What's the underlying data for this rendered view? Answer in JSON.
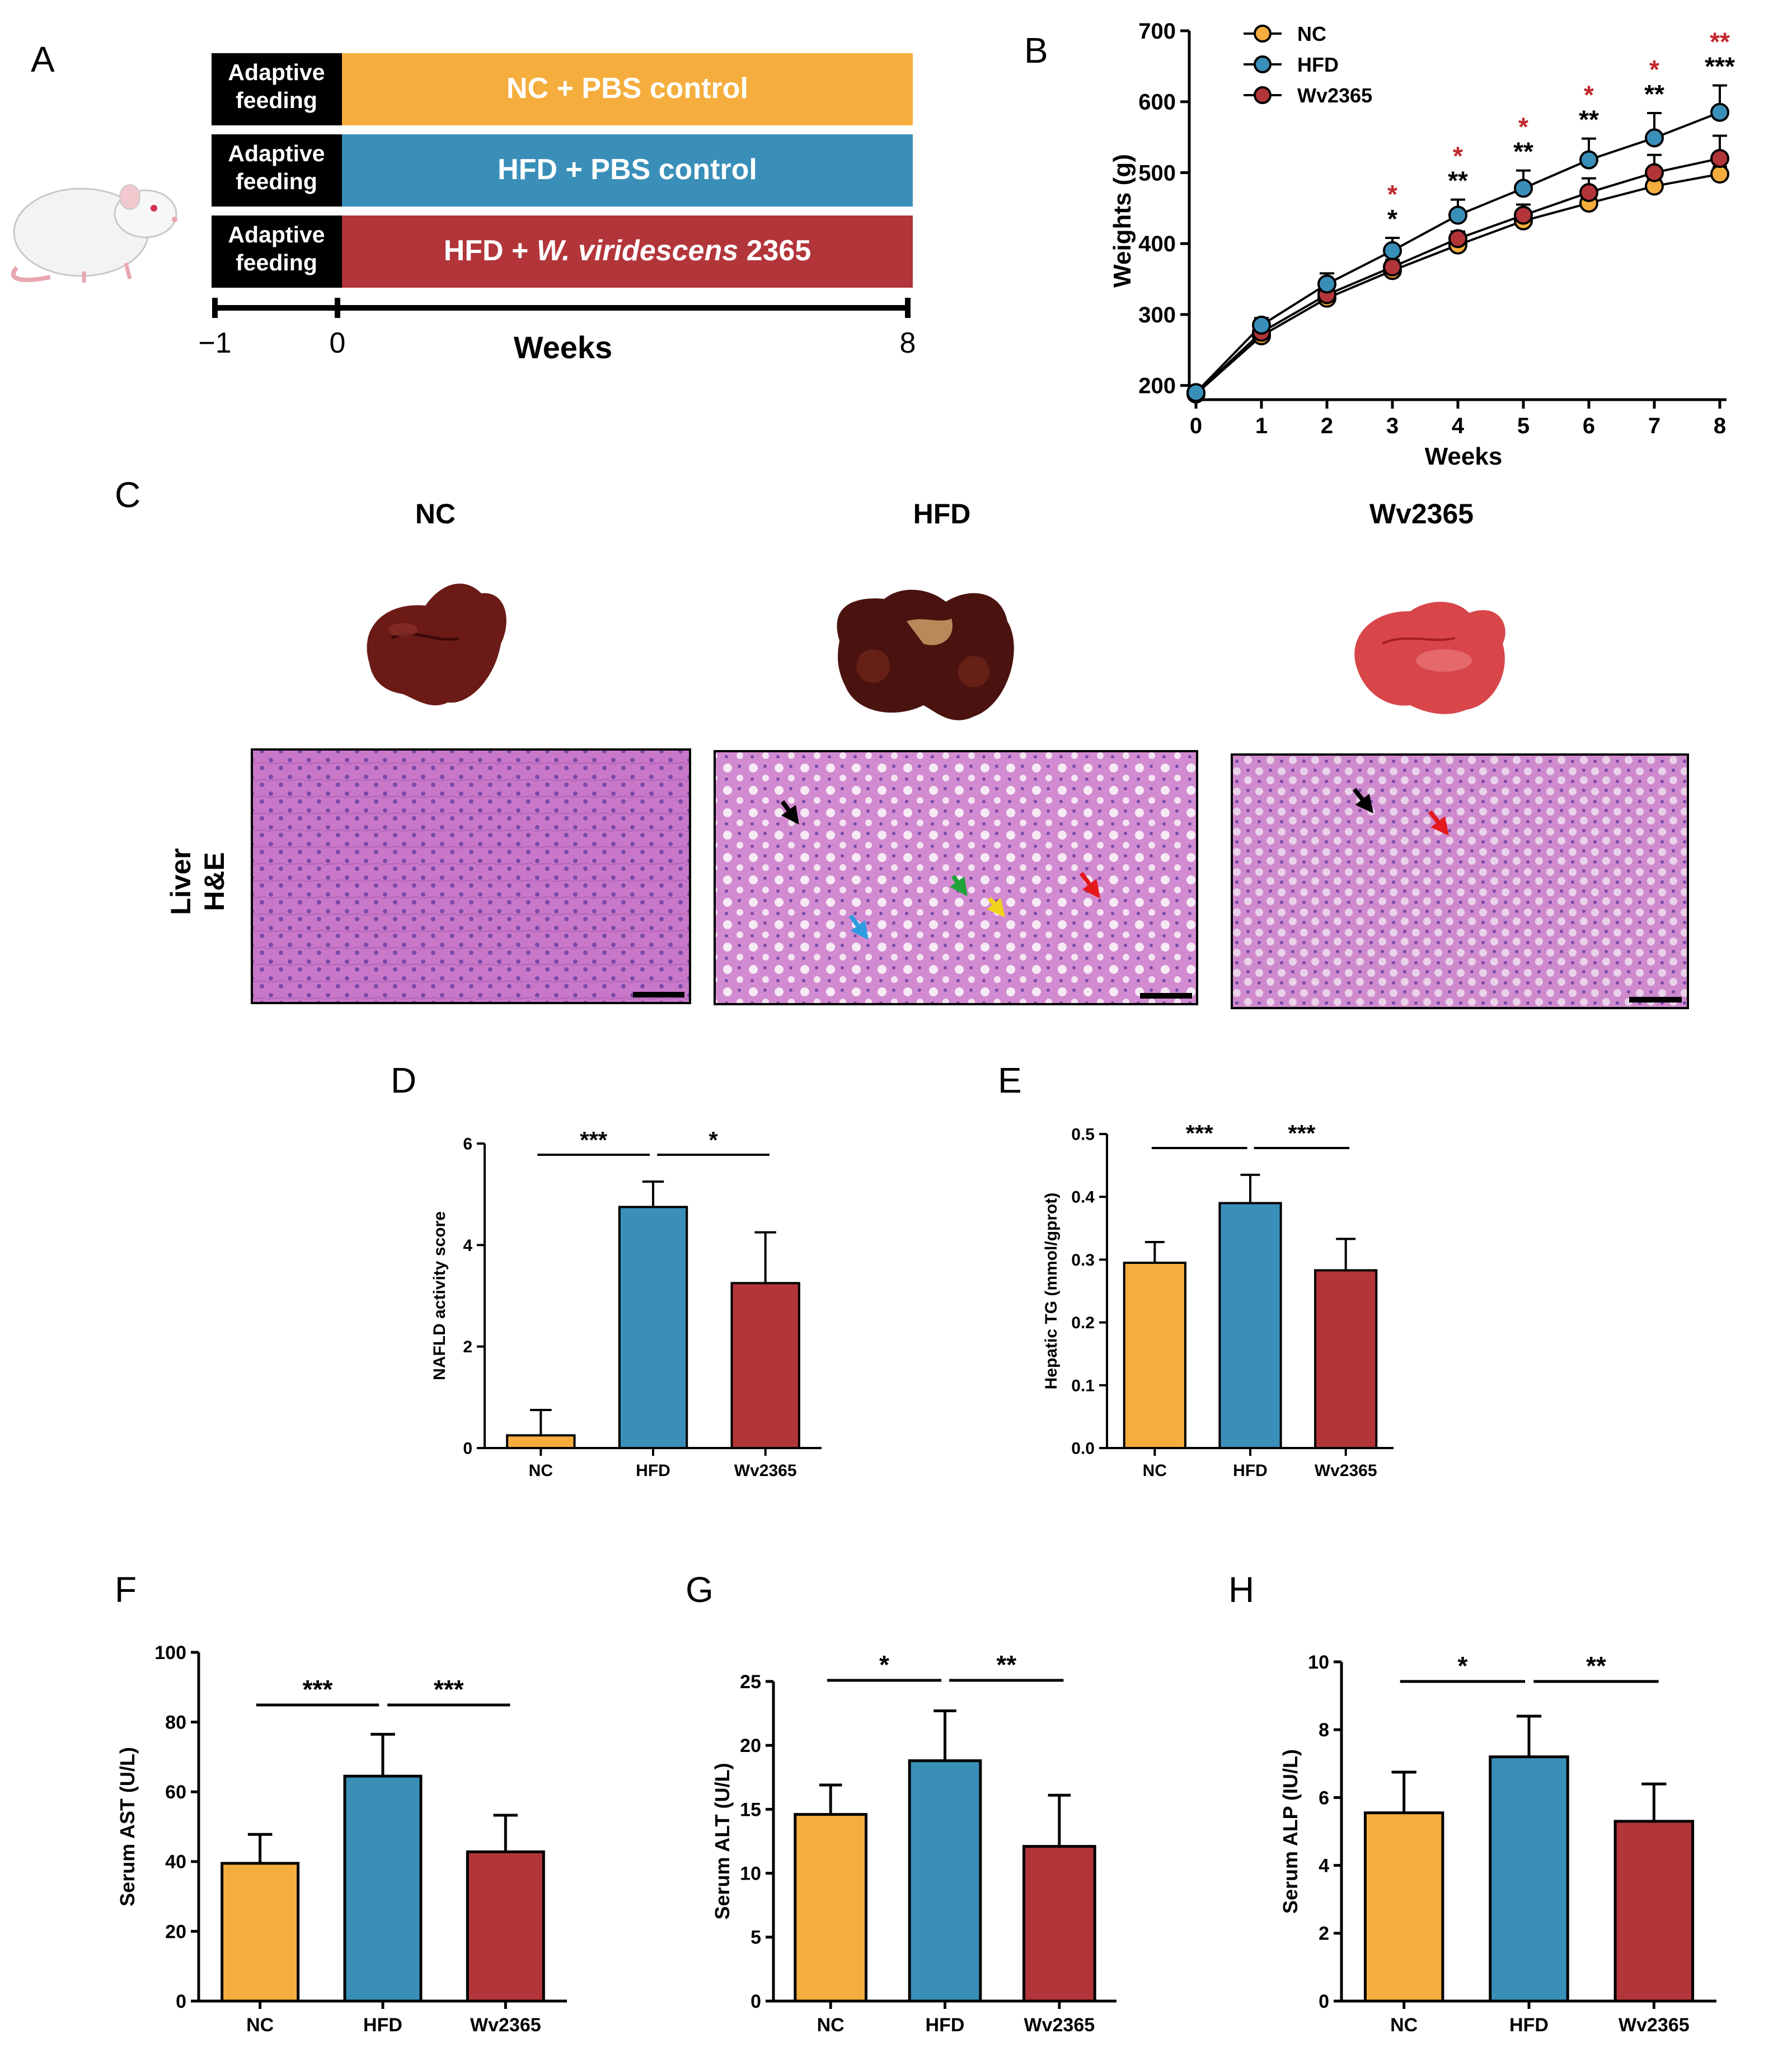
{
  "colors": {
    "nc": "#F5AE3D",
    "hfd": "#3A8FB9",
    "wv": "#B2353A",
    "black": "#000000",
    "red_star": "#C0272D"
  },
  "panel_letters": {
    "a": "A",
    "b": "B",
    "c": "C",
    "d": "D",
    "e": "E",
    "f": "F",
    "g": "G",
    "h": "H"
  },
  "panel_a": {
    "rows": [
      {
        "left": "Adaptive feeding",
        "left_l1": "Adaptive",
        "left_l2": "feeding",
        "label": "NC + PBS control"
      },
      {
        "left": "Adaptive feeding",
        "left_l1": "Adaptive",
        "left_l2": "feeding",
        "label": "HFD + PBS control"
      },
      {
        "left": "Adaptive feeding",
        "left_l1": "Adaptive",
        "left_l2": "feeding",
        "label_pre": "HFD + ",
        "label_italic": "W. viridescens",
        "label_post": " 2365"
      }
    ],
    "ticks": [
      "−1",
      "0",
      "8"
    ],
    "xlabel": "Weeks"
  },
  "panel_c": {
    "groups": [
      "NC",
      "HFD",
      "Wv2365"
    ],
    "row_label_1": "Liver",
    "row_label_2": "H&E"
  },
  "chart_data": [
    {
      "panel": "B",
      "type": "line",
      "xlabel": "Weeks",
      "ylabel": "Weights (g)",
      "x": [
        0,
        1,
        2,
        3,
        4,
        5,
        6,
        7,
        8
      ],
      "ylim": [
        180,
        700
      ],
      "yticks": [
        200,
        300,
        400,
        500,
        600,
        700
      ],
      "series": [
        {
          "name": "NC",
          "values": [
            188,
            270,
            323,
            362,
            398,
            432,
            457,
            481,
            498
          ],
          "err": [
            8,
            8,
            10,
            10,
            10,
            10,
            10,
            10,
            10
          ]
        },
        {
          "name": "HFD",
          "values": [
            190,
            285,
            343,
            390,
            440,
            478,
            518,
            549,
            585
          ],
          "err": [
            8,
            10,
            15,
            18,
            22,
            25,
            30,
            35,
            38
          ]
        },
        {
          "name": "Wv2365",
          "values": [
            189,
            275,
            328,
            367,
            407,
            440,
            472,
            500,
            520
          ],
          "err": [
            8,
            8,
            10,
            10,
            10,
            15,
            20,
            25,
            32
          ]
        }
      ],
      "sig_black": [
        "",
        "",
        "",
        "*",
        "**",
        "**",
        "**",
        "**",
        "***"
      ],
      "sig_red": [
        "",
        "",
        "",
        "*",
        "*",
        "*",
        "*",
        "*",
        "**"
      ]
    },
    {
      "panel": "D",
      "type": "bar",
      "ylabel": "NAFLD activity score",
      "categories": [
        "NC",
        "HFD",
        "Wv2365"
      ],
      "values": [
        0.25,
        4.75,
        3.25
      ],
      "err": [
        0.5,
        0.5,
        1.0
      ],
      "ylim": [
        0,
        6
      ],
      "yticks": [
        "0",
        "2",
        "4",
        "6"
      ],
      "brackets": [
        {
          "from": 0,
          "to": 1,
          "label": "***"
        },
        {
          "from": 1,
          "to": 2,
          "label": "*"
        }
      ]
    },
    {
      "panel": "E",
      "type": "bar",
      "ylabel": "Hepatic TG (mmol/gprot)",
      "categories": [
        "NC",
        "HFD",
        "Wv2365"
      ],
      "values": [
        0.295,
        0.39,
        0.283
      ],
      "err": [
        0.033,
        0.045,
        0.05
      ],
      "ylim": [
        0,
        0.5
      ],
      "yticks": [
        "0.0",
        "0.1",
        "0.2",
        "0.3",
        "0.4",
        "0.5"
      ],
      "brackets": [
        {
          "from": 0,
          "to": 1,
          "label": "***"
        },
        {
          "from": 1,
          "to": 2,
          "label": "***"
        }
      ]
    },
    {
      "panel": "F",
      "type": "bar",
      "ylabel": "Serum AST (U/L)",
      "categories": [
        "NC",
        "HFD",
        "Wv2365"
      ],
      "values": [
        39.5,
        64.5,
        42.8
      ],
      "err": [
        8.3,
        12,
        10.5
      ],
      "ylim": [
        0,
        100
      ],
      "yticks": [
        "0",
        "20",
        "40",
        "60",
        "80",
        "100"
      ],
      "brackets": [
        {
          "from": 0,
          "to": 1,
          "label": "***"
        },
        {
          "from": 1,
          "to": 2,
          "label": "***"
        }
      ]
    },
    {
      "panel": "G",
      "type": "bar",
      "ylabel": "Serum ALT (U/L)",
      "categories": [
        "NC",
        "HFD",
        "Wv2365"
      ],
      "values": [
        14.6,
        18.8,
        12.1
      ],
      "err": [
        2.3,
        3.9,
        4.0
      ],
      "ylim": [
        0,
        25
      ],
      "yticks": [
        "0",
        "5",
        "10",
        "15",
        "20",
        "25"
      ],
      "brackets": [
        {
          "from": 0,
          "to": 1,
          "label": "*"
        },
        {
          "from": 1,
          "to": 2,
          "label": "**"
        }
      ]
    },
    {
      "panel": "H",
      "type": "bar",
      "ylabel": "Serum ALP (IU/L)",
      "categories": [
        "NC",
        "HFD",
        "Wv2365"
      ],
      "values": [
        5.55,
        7.2,
        5.3
      ],
      "err": [
        1.2,
        1.2,
        1.1
      ],
      "ylim": [
        0,
        10
      ],
      "yticks": [
        "0",
        "2",
        "4",
        "6",
        "8",
        "10"
      ],
      "brackets": [
        {
          "from": 0,
          "to": 1,
          "label": "*"
        },
        {
          "from": 1,
          "to": 2,
          "label": "**"
        }
      ]
    }
  ]
}
